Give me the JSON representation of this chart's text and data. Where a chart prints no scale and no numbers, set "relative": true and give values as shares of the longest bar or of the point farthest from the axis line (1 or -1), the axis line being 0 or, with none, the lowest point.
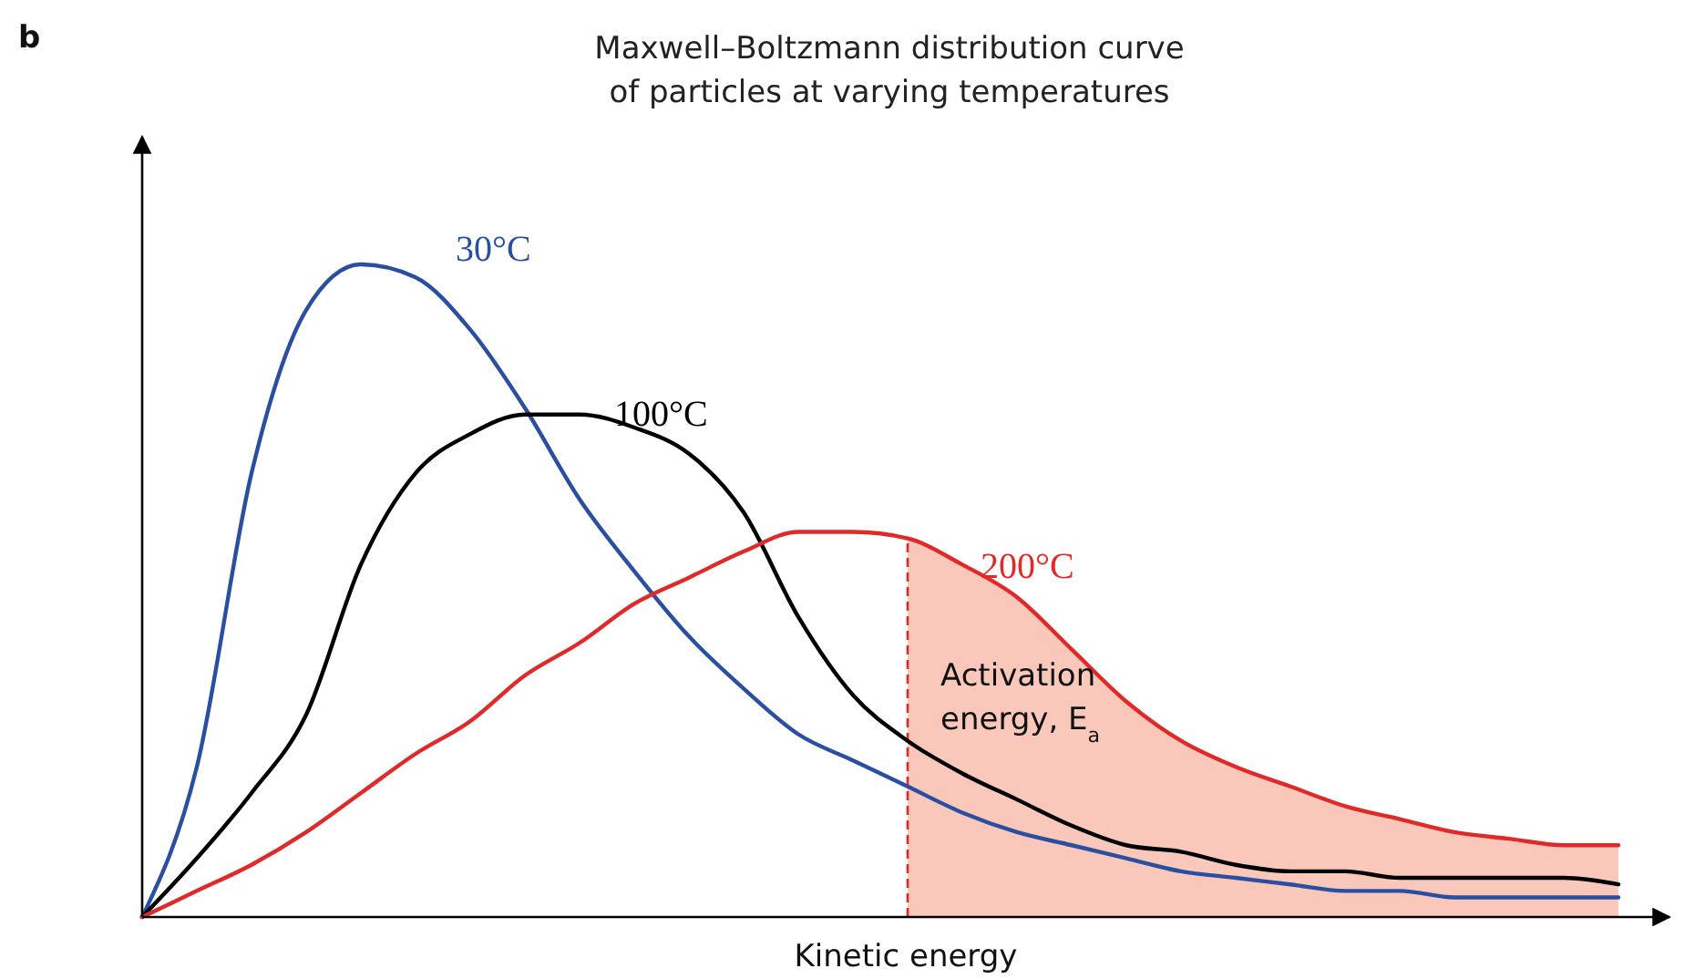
{
  "chart_data": {
    "type": "line",
    "relative": true,
    "title": "Maxwell–Boltzmann distribution curve of particles at varying temperatures",
    "xlabel": "Kinetic energy",
    "annotations": [
      "b",
      "Activation energy, E$_{a}$"
    ],
    "categories": [
      null,
      null,
      null,
      null,
      null,
      null,
      null,
      null,
      null,
      null,
      null,
      null,
      null,
      null,
      null,
      null,
      null,
      null,
      null,
      null,
      null,
      null,
      null,
      null,
      null,
      null,
      null,
      null
    ],
    "series": [
      {
        "type": "area",
        "color": "#f9c8bb",
        "values": [
          null,
          null,
          null,
          null,
          null,
          null,
          null,
          null,
          null,
          null,
          null,
          null,
          null,
          null,
          0.58,
          0.54,
          0.49,
          0.41,
          0.33,
          0.27,
          0.23,
          0.2,
          0.17,
          0.15,
          0.13,
          0.12,
          0.11,
          0.11
        ]
      },
      {
        "name": "30°C",
        "color": "#2b4fa0",
        "values": [
          0,
          0.23,
          0.68,
          0.93,
          1.0,
          0.98,
          0.9,
          0.78,
          0.64,
          0.53,
          0.43,
          0.35,
          0.28,
          0.24,
          0.2,
          0.16,
          0.13,
          0.11,
          0.09,
          0.07,
          0.06,
          0.05,
          0.04,
          0.04,
          0.03,
          0.03,
          0.03,
          0.03
        ]
      },
      {
        "name": "100°C",
        "color": "#000000",
        "values": [
          0,
          0.09,
          0.19,
          0.31,
          0.54,
          0.68,
          0.74,
          0.77,
          0.77,
          0.75,
          0.71,
          0.62,
          0.46,
          0.34,
          0.27,
          0.22,
          0.18,
          0.14,
          0.11,
          0.1,
          0.08,
          0.07,
          0.07,
          0.06,
          0.06,
          0.06,
          0.06,
          0.05
        ]
      },
      {
        "name": "200°C",
        "color": "#e02a2a",
        "values": [
          0,
          0.04,
          0.08,
          0.13,
          0.19,
          0.25,
          0.3,
          0.37,
          0.42,
          0.48,
          0.52,
          0.56,
          0.59,
          0.59,
          0.58,
          0.54,
          0.49,
          0.41,
          0.33,
          0.27,
          0.23,
          0.2,
          0.17,
          0.15,
          0.13,
          0.12,
          0.11,
          0.11
        ]
      }
    ]
  }
}
